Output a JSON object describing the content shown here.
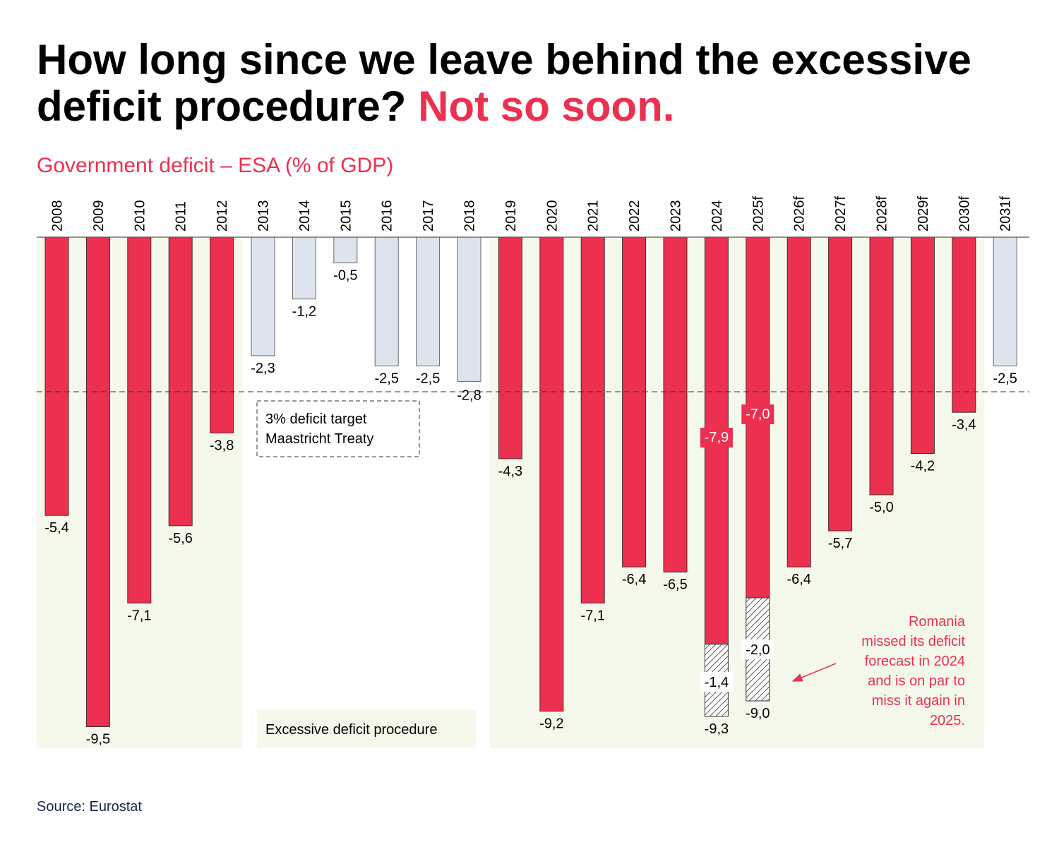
{
  "title": {
    "main": "How long since we leave behind the excessive deficit procedure?",
    "accent": "Not so soon."
  },
  "subtitle": "Government deficit – ESA (% of GDP)",
  "source": "Source: Eurostat",
  "colors": {
    "edp_bar": "#ec3050",
    "normal_bar": "#dde4ee",
    "edp_background": "#f5f9ec",
    "accent_text": "#ec3050"
  },
  "annotations": {
    "target_box": [
      "3% deficit target",
      "Maastricht Treaty"
    ],
    "edp_label": "Excessive deficit procedure",
    "romania_note": [
      "Romania",
      "missed its deficit",
      "forecast in 2024",
      "and is on par to",
      "miss it again in",
      "2025."
    ]
  },
  "chart_data": {
    "type": "bar",
    "title": "Government deficit – ESA (% of GDP)",
    "xlabel": "",
    "ylabel": "% of GDP",
    "ylim": [
      -9.5,
      0
    ],
    "grid": false,
    "reference_line": {
      "value": -3.0,
      "label": "3% deficit target Maastricht Treaty",
      "style": "dashed"
    },
    "categories": [
      "2008",
      "2009",
      "2010",
      "2011",
      "2012",
      "2013",
      "2014",
      "2015",
      "2016",
      "2017",
      "2018",
      "2019",
      "2020",
      "2021",
      "2022",
      "2023",
      "2024",
      "2025f",
      "2026f",
      "2027f",
      "2028f",
      "2029f",
      "2030f",
      "2031f"
    ],
    "values": [
      -5.4,
      -9.5,
      -7.1,
      -5.6,
      -3.8,
      -2.3,
      -1.2,
      -0.5,
      -2.5,
      -2.5,
      -2.8,
      -4.3,
      -9.2,
      -7.1,
      -6.4,
      -6.5,
      -9.3,
      -9.0,
      -6.4,
      -5.7,
      -5.0,
      -4.2,
      -3.4,
      -2.5
    ],
    "labels": [
      "-5,4",
      "-9,5",
      "-7,1",
      "-5,6",
      "-3,8",
      "-2,3",
      "-1,2",
      "-0,5",
      "-2,5",
      "-2,5",
      "-2,8",
      "-4,3",
      "-9,2",
      "-7,1",
      "-6,4",
      "-6,5",
      "-9,3",
      "-9,0",
      "-6,4",
      "-5,7",
      "-5,0",
      "-4,2",
      "-3,4",
      "-2,5"
    ],
    "excessive_deficit_procedure": [
      true,
      true,
      true,
      true,
      true,
      false,
      false,
      false,
      false,
      false,
      false,
      true,
      true,
      true,
      true,
      true,
      true,
      true,
      true,
      true,
      true,
      true,
      true,
      false
    ],
    "forecast_miss": [
      {
        "category": "2024",
        "forecast": -7.9,
        "forecast_label": "-7,9",
        "miss": -1.4,
        "miss_label": "-1,4",
        "actual": -9.3
      },
      {
        "category": "2025f",
        "forecast": -7.0,
        "forecast_label": "-7,0",
        "miss": -2.0,
        "miss_label": "-2,0",
        "actual": -9.0
      }
    ],
    "edp_periods": [
      [
        "2008",
        "2012"
      ],
      [
        "2019",
        "2030f"
      ]
    ]
  }
}
